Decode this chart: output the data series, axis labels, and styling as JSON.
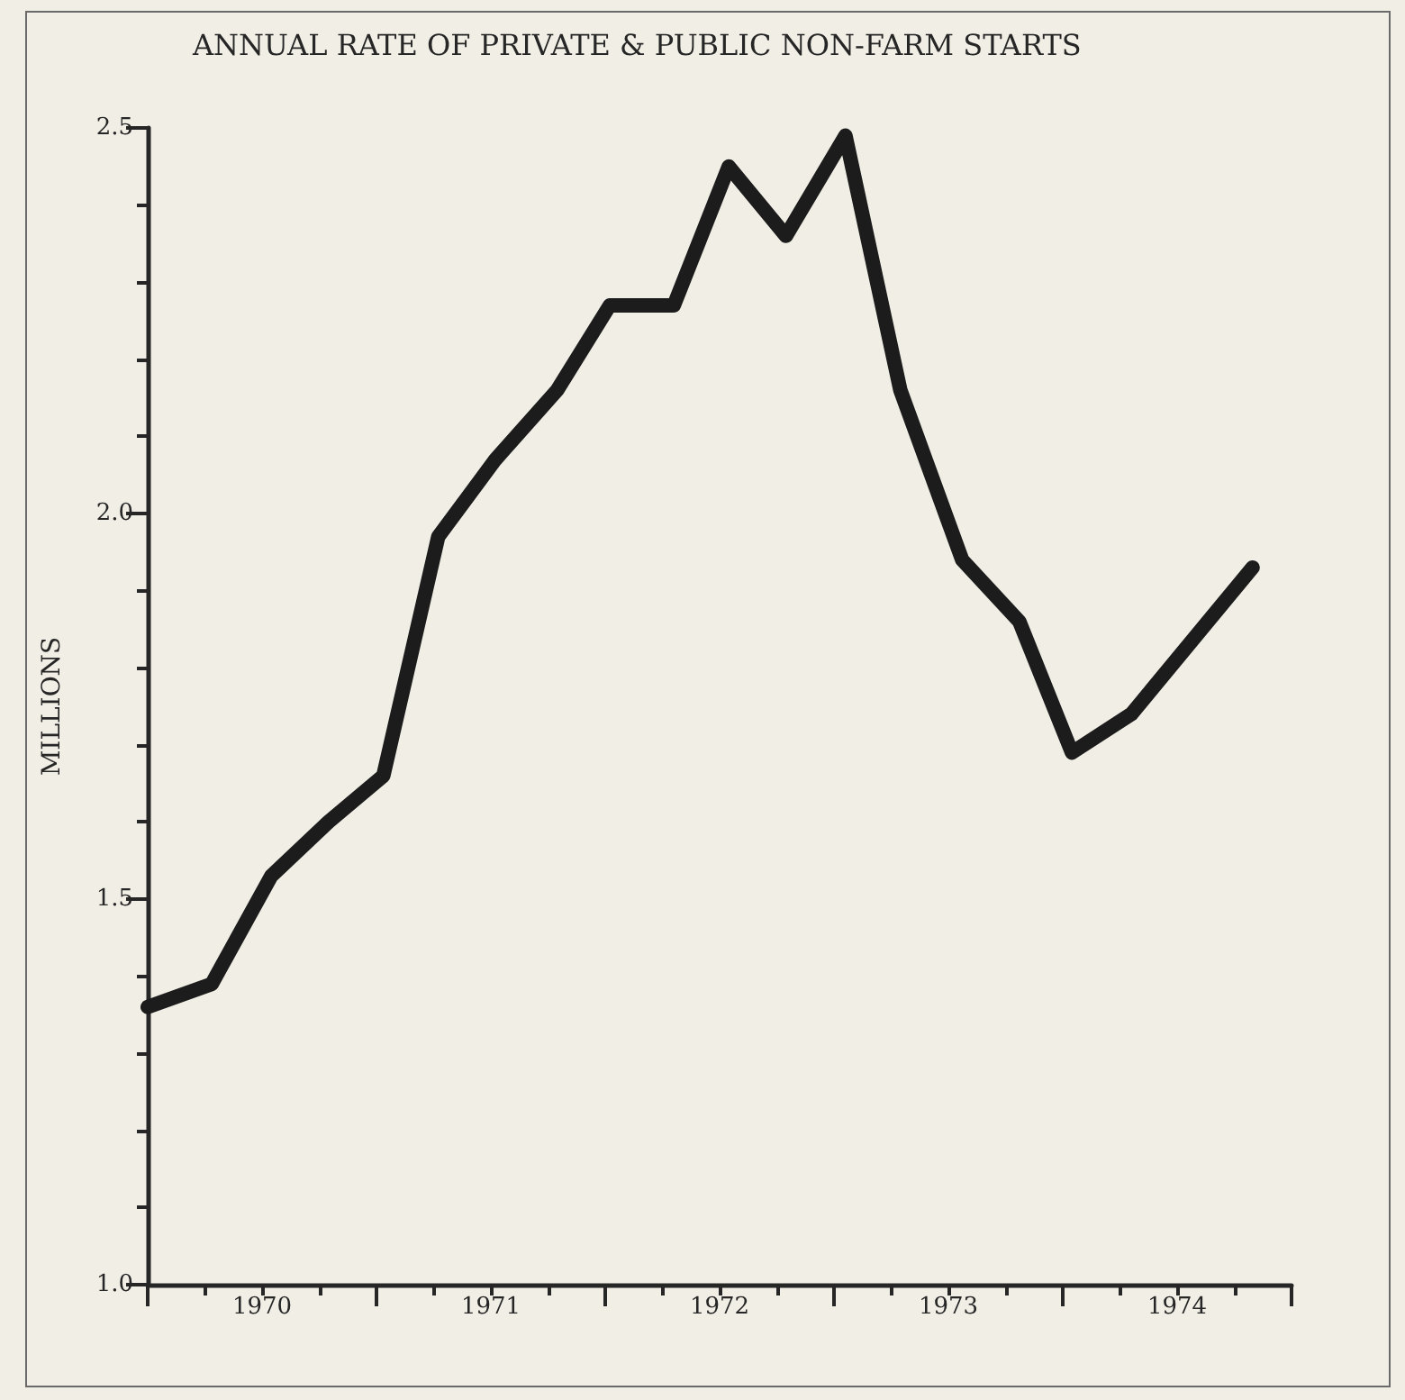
{
  "chart_data": {
    "type": "line",
    "title": "ANNUAL RATE OF PRIVATE & PUBLIC NON-FARM STARTS",
    "ylabel": "MILLIONS",
    "x": [
      1970.0,
      1970.28,
      1970.54,
      1970.79,
      1971.03,
      1971.27,
      1971.52,
      1971.79,
      1972.02,
      1972.3,
      1972.54,
      1972.79,
      1973.05,
      1973.29,
      1973.56,
      1973.81,
      1974.04,
      1974.3,
      1974.83
    ],
    "series": [
      {
        "color": "#1c1c1c",
        "values": [
          1.36,
          1.39,
          1.53,
          1.6,
          1.66,
          1.97,
          2.07,
          2.16,
          2.27,
          2.27,
          2.45,
          2.36,
          2.49,
          2.16,
          1.94,
          1.86,
          1.69,
          1.74,
          1.93
        ]
      }
    ],
    "xlim": [
      1970,
      1975
    ],
    "xticks": [
      {
        "value": 1970,
        "label": null
      },
      {
        "value": 1970.25,
        "label": null
      },
      {
        "value": 1970.5,
        "label": "1970"
      },
      {
        "value": 1970.75,
        "label": null
      },
      {
        "value": 1971,
        "label": null
      },
      {
        "value": 1971.25,
        "label": null
      },
      {
        "value": 1971.5,
        "label": "1971"
      },
      {
        "value": 1971.75,
        "label": null
      },
      {
        "value": 1972,
        "label": null
      },
      {
        "value": 1972.25,
        "label": null
      },
      {
        "value": 1972.5,
        "label": "1972"
      },
      {
        "value": 1972.75,
        "label": null
      },
      {
        "value": 1973,
        "label": null
      },
      {
        "value": 1973.25,
        "label": null
      },
      {
        "value": 1973.5,
        "label": "1973"
      },
      {
        "value": 1973.75,
        "label": null
      },
      {
        "value": 1974,
        "label": null
      },
      {
        "value": 1974.25,
        "label": null
      },
      {
        "value": 1974.5,
        "label": "1974"
      },
      {
        "value": 1974.75,
        "label": null
      },
      {
        "value": 1975,
        "label": null
      }
    ],
    "ylim": [
      1.0,
      2.5
    ],
    "yticks": [
      {
        "value": 1.0,
        "label": "1.0"
      },
      {
        "value": 1.1,
        "label": null
      },
      {
        "value": 1.2,
        "label": null
      },
      {
        "value": 1.3,
        "label": null
      },
      {
        "value": 1.4,
        "label": null
      },
      {
        "value": 1.5,
        "label": "1.5"
      },
      {
        "value": 1.6,
        "label": null
      },
      {
        "value": 1.7,
        "label": null
      },
      {
        "value": 1.8,
        "label": null
      },
      {
        "value": 1.9,
        "label": null
      },
      {
        "value": 2.0,
        "label": "2.0"
      },
      {
        "value": 2.1,
        "label": null
      },
      {
        "value": 2.2,
        "label": null
      },
      {
        "value": 2.3,
        "label": null
      },
      {
        "value": 2.4,
        "label": null
      },
      {
        "value": 2.5,
        "label": "2.5"
      }
    ],
    "grid": false,
    "marker": "none",
    "line_style": "solid"
  }
}
